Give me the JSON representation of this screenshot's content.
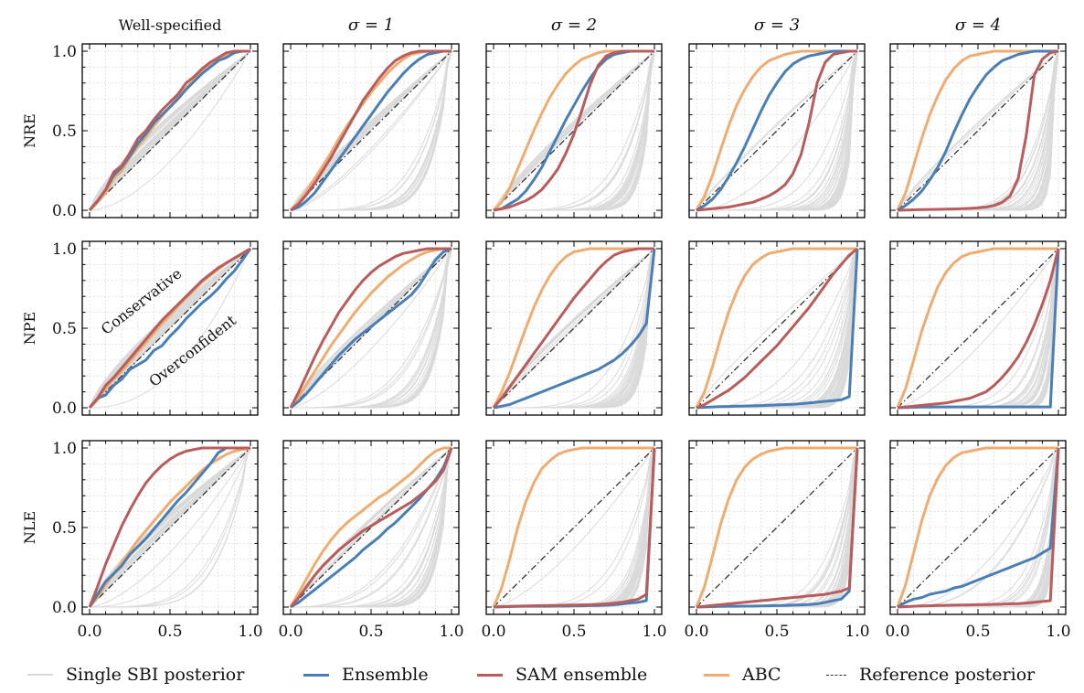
{
  "chart_data": {
    "type": "line",
    "description_free": true,
    "columns": [
      "Well-specified",
      "σ = 1",
      "σ = 2",
      "σ = 3",
      "σ = 4"
    ],
    "rows": [
      "NRE",
      "NPE",
      "NLE"
    ],
    "x_ticks": [
      "0.0",
      "0.5",
      "1.0"
    ],
    "y_ticks": [
      "0.0",
      "0.5",
      "1.0"
    ],
    "xlim": [
      0,
      1
    ],
    "ylim": [
      0,
      1
    ],
    "annotations": {
      "conservative": "Conservative",
      "overconfident": "Overconfident"
    },
    "colors": {
      "single": "#d9d9d9",
      "ensemble": "#4a7fb5",
      "sam": "#b85c5c",
      "abc": "#efac70",
      "reference": "#333333"
    },
    "legend": [
      {
        "key": "single",
        "label": "Single SBI posterior"
      },
      {
        "key": "ensemble",
        "label": "Ensemble"
      },
      {
        "key": "sam",
        "label": "SAM ensemble"
      },
      {
        "key": "abc",
        "label": "ABC"
      },
      {
        "key": "reference",
        "label": "Reference posterior"
      }
    ],
    "x": [
      0,
      0.05,
      0.1,
      0.15,
      0.2,
      0.25,
      0.3,
      0.35,
      0.4,
      0.45,
      0.5,
      0.55,
      0.6,
      0.65,
      0.7,
      0.75,
      0.8,
      0.85,
      0.9,
      0.95,
      1.0
    ],
    "panels": [
      [
        {
          "ensemble": [
            0,
            0.06,
            0.13,
            0.22,
            0.27,
            0.34,
            0.42,
            0.48,
            0.55,
            0.6,
            0.65,
            0.7,
            0.76,
            0.81,
            0.86,
            0.9,
            0.94,
            0.96,
            0.99,
            1,
            1
          ],
          "sam": [
            0,
            0.06,
            0.13,
            0.24,
            0.28,
            0.36,
            0.45,
            0.5,
            0.57,
            0.63,
            0.68,
            0.73,
            0.8,
            0.84,
            0.89,
            0.93,
            0.96,
            0.99,
            1,
            1,
            1
          ],
          "abc": [
            0,
            0.05,
            0.11,
            0.2,
            0.25,
            0.33,
            0.4,
            0.46,
            0.53,
            0.59,
            0.65,
            0.71,
            0.77,
            0.82,
            0.87,
            0.91,
            0.95,
            0.98,
            1,
            1,
            1
          ]
        },
        {
          "ensemble": [
            0,
            0.02,
            0.06,
            0.11,
            0.18,
            0.25,
            0.32,
            0.39,
            0.46,
            0.53,
            0.6,
            0.67,
            0.74,
            0.8,
            0.86,
            0.91,
            0.95,
            0.98,
            0.99,
            1,
            1
          ],
          "sam": [
            0,
            0.04,
            0.1,
            0.17,
            0.25,
            0.33,
            0.42,
            0.51,
            0.6,
            0.69,
            0.76,
            0.83,
            0.89,
            0.94,
            0.97,
            0.99,
            1,
            1,
            1,
            1,
            1
          ],
          "abc": [
            0,
            0.05,
            0.12,
            0.2,
            0.28,
            0.36,
            0.45,
            0.53,
            0.6,
            0.67,
            0.74,
            0.8,
            0.86,
            0.91,
            0.95,
            0.98,
            0.99,
            1,
            1,
            1,
            1
          ]
        },
        {
          "ensemble": [
            0,
            0.01,
            0.04,
            0.07,
            0.12,
            0.19,
            0.27,
            0.37,
            0.47,
            0.57,
            0.66,
            0.75,
            0.83,
            0.9,
            0.95,
            0.98,
            0.99,
            1,
            1,
            1,
            1
          ],
          "sam": [
            0,
            0.01,
            0.02,
            0.04,
            0.06,
            0.09,
            0.13,
            0.19,
            0.26,
            0.36,
            0.48,
            0.63,
            0.79,
            0.91,
            0.97,
            0.99,
            1,
            1,
            1,
            1,
            1
          ],
          "abc": [
            0,
            0.05,
            0.14,
            0.26,
            0.38,
            0.5,
            0.61,
            0.71,
            0.79,
            0.86,
            0.91,
            0.95,
            0.97,
            0.99,
            1,
            1,
            1,
            1,
            1,
            1,
            1
          ]
        },
        {
          "ensemble": [
            0,
            0.03,
            0.07,
            0.13,
            0.21,
            0.3,
            0.4,
            0.51,
            0.62,
            0.72,
            0.8,
            0.87,
            0.92,
            0.95,
            0.97,
            0.98,
            0.99,
            1,
            1,
            1,
            1
          ],
          "sam": [
            0,
            0.005,
            0.01,
            0.015,
            0.02,
            0.03,
            0.04,
            0.05,
            0.07,
            0.09,
            0.12,
            0.16,
            0.23,
            0.35,
            0.55,
            0.8,
            0.93,
            0.98,
            0.99,
            1,
            1
          ],
          "abc": [
            0,
            0.09,
            0.22,
            0.38,
            0.53,
            0.66,
            0.76,
            0.84,
            0.9,
            0.94,
            0.96,
            0.98,
            0.99,
            1,
            1,
            1,
            1,
            1,
            1,
            1,
            1
          ]
        },
        {
          "ensemble": [
            0,
            0.03,
            0.07,
            0.12,
            0.19,
            0.27,
            0.37,
            0.49,
            0.6,
            0.7,
            0.78,
            0.85,
            0.9,
            0.94,
            0.96,
            0.98,
            0.99,
            1,
            1,
            1,
            1
          ],
          "sam": [
            0,
            0.002,
            0.003,
            0.004,
            0.005,
            0.006,
            0.007,
            0.008,
            0.01,
            0.012,
            0.015,
            0.02,
            0.03,
            0.05,
            0.09,
            0.2,
            0.47,
            0.85,
            0.95,
            0.99,
            1
          ],
          "abc": [
            0,
            0.11,
            0.28,
            0.45,
            0.6,
            0.72,
            0.82,
            0.89,
            0.94,
            0.97,
            0.98,
            0.99,
            1,
            1,
            1,
            1,
            1,
            1,
            1,
            1,
            1
          ]
        }
      ],
      [
        {
          "ensemble": [
            0,
            0.06,
            0.08,
            0.14,
            0.18,
            0.24,
            0.27,
            0.3,
            0.36,
            0.39,
            0.45,
            0.5,
            0.56,
            0.61,
            0.66,
            0.7,
            0.75,
            0.81,
            0.86,
            0.93,
            1
          ],
          "sam": [
            0,
            0.06,
            0.14,
            0.19,
            0.25,
            0.31,
            0.37,
            0.43,
            0.49,
            0.55,
            0.6,
            0.65,
            0.7,
            0.75,
            0.8,
            0.84,
            0.88,
            0.91,
            0.94,
            0.97,
            1
          ],
          "abc": [
            0,
            0.05,
            0.12,
            0.18,
            0.23,
            0.29,
            0.35,
            0.41,
            0.47,
            0.53,
            0.58,
            0.64,
            0.69,
            0.74,
            0.79,
            0.83,
            0.87,
            0.91,
            0.94,
            0.97,
            1
          ]
        },
        {
          "ensemble": [
            0,
            0.04,
            0.09,
            0.15,
            0.21,
            0.27,
            0.33,
            0.38,
            0.43,
            0.47,
            0.51,
            0.55,
            0.59,
            0.63,
            0.67,
            0.71,
            0.77,
            0.85,
            0.93,
            0.98,
            1
          ],
          "sam": [
            0,
            0.1,
            0.21,
            0.32,
            0.42,
            0.51,
            0.6,
            0.67,
            0.74,
            0.8,
            0.85,
            0.89,
            0.92,
            0.95,
            0.97,
            0.98,
            0.99,
            1,
            1,
            1,
            1
          ],
          "abc": [
            0,
            0.07,
            0.15,
            0.23,
            0.31,
            0.39,
            0.46,
            0.53,
            0.6,
            0.66,
            0.72,
            0.77,
            0.82,
            0.86,
            0.9,
            0.93,
            0.96,
            0.98,
            0.99,
            1,
            1
          ]
        },
        {
          "ensemble": [
            0,
            0.01,
            0.02,
            0.04,
            0.06,
            0.08,
            0.1,
            0.12,
            0.14,
            0.16,
            0.18,
            0.2,
            0.22,
            0.24,
            0.27,
            0.3,
            0.34,
            0.39,
            0.45,
            0.53,
            1
          ],
          "sam": [
            0,
            0.06,
            0.13,
            0.2,
            0.27,
            0.34,
            0.41,
            0.48,
            0.55,
            0.62,
            0.69,
            0.75,
            0.81,
            0.87,
            0.92,
            0.96,
            0.98,
            0.99,
            1,
            1,
            1
          ],
          "abc": [
            0,
            0.1,
            0.22,
            0.36,
            0.5,
            0.63,
            0.74,
            0.83,
            0.9,
            0.95,
            0.98,
            0.99,
            1,
            1,
            1,
            1,
            1,
            1,
            1,
            1,
            1
          ]
        },
        {
          "ensemble": [
            0,
            0.003,
            0.005,
            0.007,
            0.008,
            0.01,
            0.011,
            0.012,
            0.014,
            0.016,
            0.018,
            0.02,
            0.022,
            0.025,
            0.03,
            0.035,
            0.04,
            0.045,
            0.05,
            0.07,
            1
          ],
          "sam": [
            0,
            0.02,
            0.05,
            0.08,
            0.11,
            0.15,
            0.19,
            0.24,
            0.29,
            0.34,
            0.39,
            0.45,
            0.51,
            0.57,
            0.63,
            0.7,
            0.77,
            0.84,
            0.9,
            0.96,
            1
          ],
          "abc": [
            0,
            0.1,
            0.26,
            0.44,
            0.6,
            0.73,
            0.83,
            0.9,
            0.94,
            0.97,
            0.98,
            0.99,
            1,
            1,
            1,
            1,
            1,
            1,
            1,
            1,
            1
          ]
        },
        {
          "ensemble": [
            0,
            0.002,
            0.003,
            0.004,
            0.004,
            0.005,
            0.005,
            0.005,
            0.005,
            0.005,
            0.005,
            0.005,
            0.005,
            0.005,
            0.005,
            0.005,
            0.005,
            0.005,
            0.005,
            0.005,
            1
          ],
          "sam": [
            0,
            0.005,
            0.01,
            0.015,
            0.02,
            0.025,
            0.03,
            0.04,
            0.05,
            0.06,
            0.08,
            0.1,
            0.14,
            0.19,
            0.25,
            0.32,
            0.41,
            0.52,
            0.65,
            0.8,
            1
          ],
          "abc": [
            0,
            0.12,
            0.3,
            0.48,
            0.63,
            0.76,
            0.85,
            0.91,
            0.95,
            0.97,
            0.98,
            0.99,
            1,
            1,
            1,
            1,
            1,
            1,
            1,
            1,
            1
          ]
        }
      ],
      [
        {
          "ensemble": [
            0,
            0.08,
            0.16,
            0.21,
            0.26,
            0.33,
            0.38,
            0.43,
            0.49,
            0.55,
            0.61,
            0.67,
            0.72,
            0.78,
            0.84,
            0.9,
            0.97,
            1,
            1,
            1,
            1
          ],
          "sam": [
            0,
            0.13,
            0.27,
            0.39,
            0.51,
            0.61,
            0.7,
            0.78,
            0.84,
            0.89,
            0.93,
            0.96,
            0.98,
            0.99,
            1,
            1,
            1,
            1,
            1,
            1,
            1
          ],
          "abc": [
            0,
            0.06,
            0.14,
            0.21,
            0.28,
            0.35,
            0.42,
            0.48,
            0.54,
            0.6,
            0.66,
            0.71,
            0.76,
            0.81,
            0.86,
            0.9,
            0.93,
            0.96,
            0.98,
            0.99,
            1
          ]
        },
        {
          "ensemble": [
            0,
            0.03,
            0.07,
            0.11,
            0.15,
            0.19,
            0.23,
            0.27,
            0.31,
            0.36,
            0.4,
            0.44,
            0.49,
            0.53,
            0.58,
            0.63,
            0.68,
            0.74,
            0.8,
            0.88,
            1
          ],
          "sam": [
            0,
            0.06,
            0.13,
            0.2,
            0.26,
            0.31,
            0.36,
            0.4,
            0.44,
            0.48,
            0.51,
            0.54,
            0.57,
            0.6,
            0.63,
            0.66,
            0.7,
            0.74,
            0.79,
            0.86,
            1
          ],
          "abc": [
            0,
            0.09,
            0.18,
            0.27,
            0.35,
            0.42,
            0.48,
            0.53,
            0.57,
            0.61,
            0.65,
            0.69,
            0.72,
            0.76,
            0.8,
            0.84,
            0.89,
            0.94,
            0.98,
            1,
            1
          ]
        },
        {
          "ensemble": [
            0,
            0.002,
            0.003,
            0.004,
            0.005,
            0.005,
            0.005,
            0.005,
            0.006,
            0.006,
            0.007,
            0.008,
            0.009,
            0.01,
            0.012,
            0.015,
            0.02,
            0.025,
            0.03,
            0.04,
            1
          ],
          "sam": [
            0,
            0.003,
            0.005,
            0.006,
            0.007,
            0.008,
            0.009,
            0.01,
            0.011,
            0.012,
            0.013,
            0.014,
            0.015,
            0.017,
            0.02,
            0.025,
            0.03,
            0.04,
            0.05,
            0.08,
            1
          ],
          "abc": [
            0,
            0.12,
            0.3,
            0.5,
            0.66,
            0.78,
            0.87,
            0.92,
            0.96,
            0.98,
            0.99,
            1,
            1,
            1,
            1,
            1,
            1,
            1,
            1,
            1,
            1
          ]
        },
        {
          "ensemble": [
            0,
            0.002,
            0.003,
            0.004,
            0.005,
            0.005,
            0.006,
            0.006,
            0.007,
            0.008,
            0.009,
            0.01,
            0.012,
            0.014,
            0.016,
            0.02,
            0.03,
            0.04,
            0.05,
            0.1,
            1
          ],
          "sam": [
            0,
            0.005,
            0.01,
            0.015,
            0.02,
            0.025,
            0.03,
            0.035,
            0.04,
            0.045,
            0.05,
            0.055,
            0.06,
            0.065,
            0.07,
            0.075,
            0.08,
            0.09,
            0.1,
            0.12,
            1
          ],
          "abc": [
            0,
            0.13,
            0.32,
            0.52,
            0.68,
            0.8,
            0.88,
            0.93,
            0.96,
            0.98,
            0.99,
            1,
            1,
            1,
            1,
            1,
            1,
            1,
            1,
            1,
            1
          ]
        },
        {
          "ensemble": [
            0,
            0.03,
            0.05,
            0.06,
            0.08,
            0.09,
            0.1,
            0.12,
            0.13,
            0.15,
            0.17,
            0.19,
            0.21,
            0.23,
            0.25,
            0.27,
            0.29,
            0.31,
            0.34,
            0.37,
            1
          ],
          "sam": [
            0,
            0.003,
            0.005,
            0.007,
            0.008,
            0.01,
            0.011,
            0.012,
            0.013,
            0.014,
            0.015,
            0.016,
            0.017,
            0.018,
            0.02,
            0.022,
            0.025,
            0.03,
            0.035,
            0.04,
            1
          ],
          "abc": [
            0,
            0.14,
            0.34,
            0.54,
            0.7,
            0.81,
            0.89,
            0.94,
            0.97,
            0.98,
            0.99,
            1,
            1,
            1,
            1,
            1,
            1,
            1,
            1,
            1,
            1
          ]
        }
      ]
    ],
    "single_posterior_spread": [
      [
        0.05,
        0.35,
        0.65,
        0.85,
        0.95
      ],
      [
        0.1,
        0.55,
        0.85,
        0.95,
        0.98
      ],
      [
        0.15,
        0.7,
        0.95,
        0.97,
        0.98
      ]
    ]
  }
}
